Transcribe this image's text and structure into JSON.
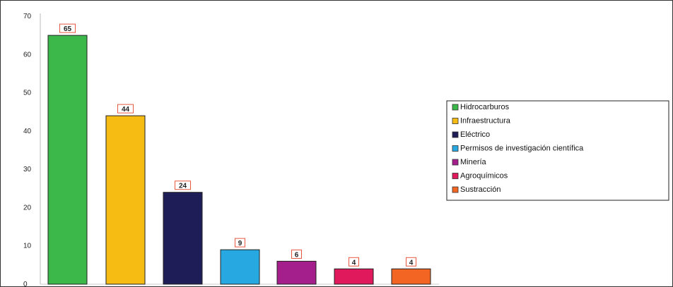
{
  "chart_data": {
    "type": "bar",
    "title": "",
    "xlabel": "",
    "ylabel": "",
    "ylim": [
      0,
      70
    ],
    "yticks": [
      0,
      10,
      20,
      30,
      40,
      50,
      60,
      70
    ],
    "grid": false,
    "legend_position": "right",
    "categories": [
      "Hidrocarburos",
      "Infraestructura",
      "Eléctrico",
      "Permisos de investigación científica",
      "Minería",
      "Agroquímicos",
      "Sustracción"
    ],
    "values": [
      65,
      44,
      24,
      9,
      6,
      4,
      4
    ],
    "colors": [
      "#3cb84a",
      "#f7bc13",
      "#1e1d57",
      "#27a8e0",
      "#a51f8c",
      "#e0195c",
      "#f26522"
    ],
    "data_label_border_color": "#e8593f"
  }
}
